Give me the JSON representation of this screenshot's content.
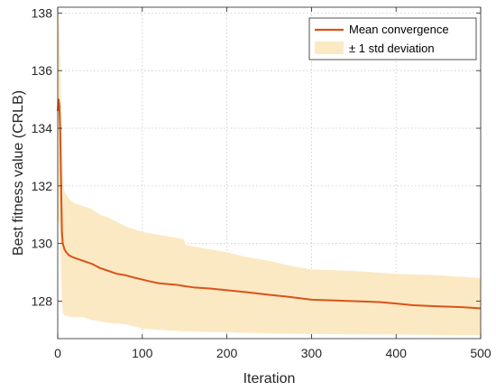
{
  "chart_data": {
    "type": "line",
    "title": "",
    "xlabel": "Iteration",
    "ylabel": "Best fitness value (CRLB)",
    "xlim": [
      0,
      500
    ],
    "ylim": [
      126.7,
      138.2
    ],
    "xticks": [
      0,
      100,
      200,
      300,
      400,
      500
    ],
    "yticks": [
      128,
      130,
      132,
      134,
      136,
      138
    ],
    "grid": true,
    "grid_style": "dotted",
    "legend_position": "top-right",
    "colors": {
      "line": "#D95319",
      "band": "#FBE9C4",
      "axis": "#262626",
      "grid": "#C8C8C8"
    },
    "series": [
      {
        "name": "Mean convergence",
        "kind": "line",
        "x": [
          0,
          1,
          2,
          3,
          4,
          5,
          6,
          7,
          8,
          10,
          13,
          16,
          20,
          25,
          30,
          40,
          50,
          60,
          70,
          80,
          90,
          100,
          110,
          120,
          140,
          150,
          160,
          180,
          200,
          220,
          250,
          270,
          300,
          350,
          380,
          400,
          420,
          450,
          480,
          500
        ],
        "y": [
          134.6,
          135.0,
          134.8,
          133.9,
          132.0,
          130.4,
          130.0,
          129.9,
          129.8,
          129.7,
          129.6,
          129.55,
          129.5,
          129.45,
          129.4,
          129.3,
          129.15,
          129.05,
          128.95,
          128.9,
          128.82,
          128.75,
          128.68,
          128.62,
          128.57,
          128.52,
          128.48,
          128.44,
          128.38,
          128.32,
          128.22,
          128.16,
          128.05,
          128.0,
          127.97,
          127.92,
          127.86,
          127.82,
          127.79,
          127.75
        ]
      },
      {
        "name": "± 1 std deviation",
        "kind": "band",
        "x": [
          0,
          1,
          2,
          3,
          4,
          5,
          6,
          7,
          8,
          10,
          15,
          20,
          30,
          40,
          50,
          60,
          80,
          100,
          120,
          149,
          151,
          180,
          200,
          220,
          250,
          280,
          300,
          350,
          400,
          450,
          500
        ],
        "upper": [
          138.1,
          138.0,
          137.5,
          136.5,
          135.0,
          133.5,
          132.5,
          132.0,
          131.8,
          131.7,
          131.5,
          131.4,
          131.3,
          131.2,
          131.0,
          130.9,
          130.6,
          130.4,
          130.3,
          130.15,
          129.95,
          129.8,
          129.7,
          129.55,
          129.4,
          129.2,
          129.1,
          129.05,
          128.95,
          128.9,
          128.8
        ],
        "lower": [
          130.8,
          130.8,
          130.6,
          130.0,
          129.0,
          128.0,
          127.6,
          127.55,
          127.5,
          127.5,
          127.45,
          127.45,
          127.45,
          127.35,
          127.3,
          127.25,
          127.2,
          127.05,
          127.0,
          126.95,
          126.95,
          126.93,
          126.92,
          126.9,
          126.88,
          126.87,
          126.86,
          126.85,
          126.84,
          126.83,
          126.82
        ]
      }
    ]
  }
}
